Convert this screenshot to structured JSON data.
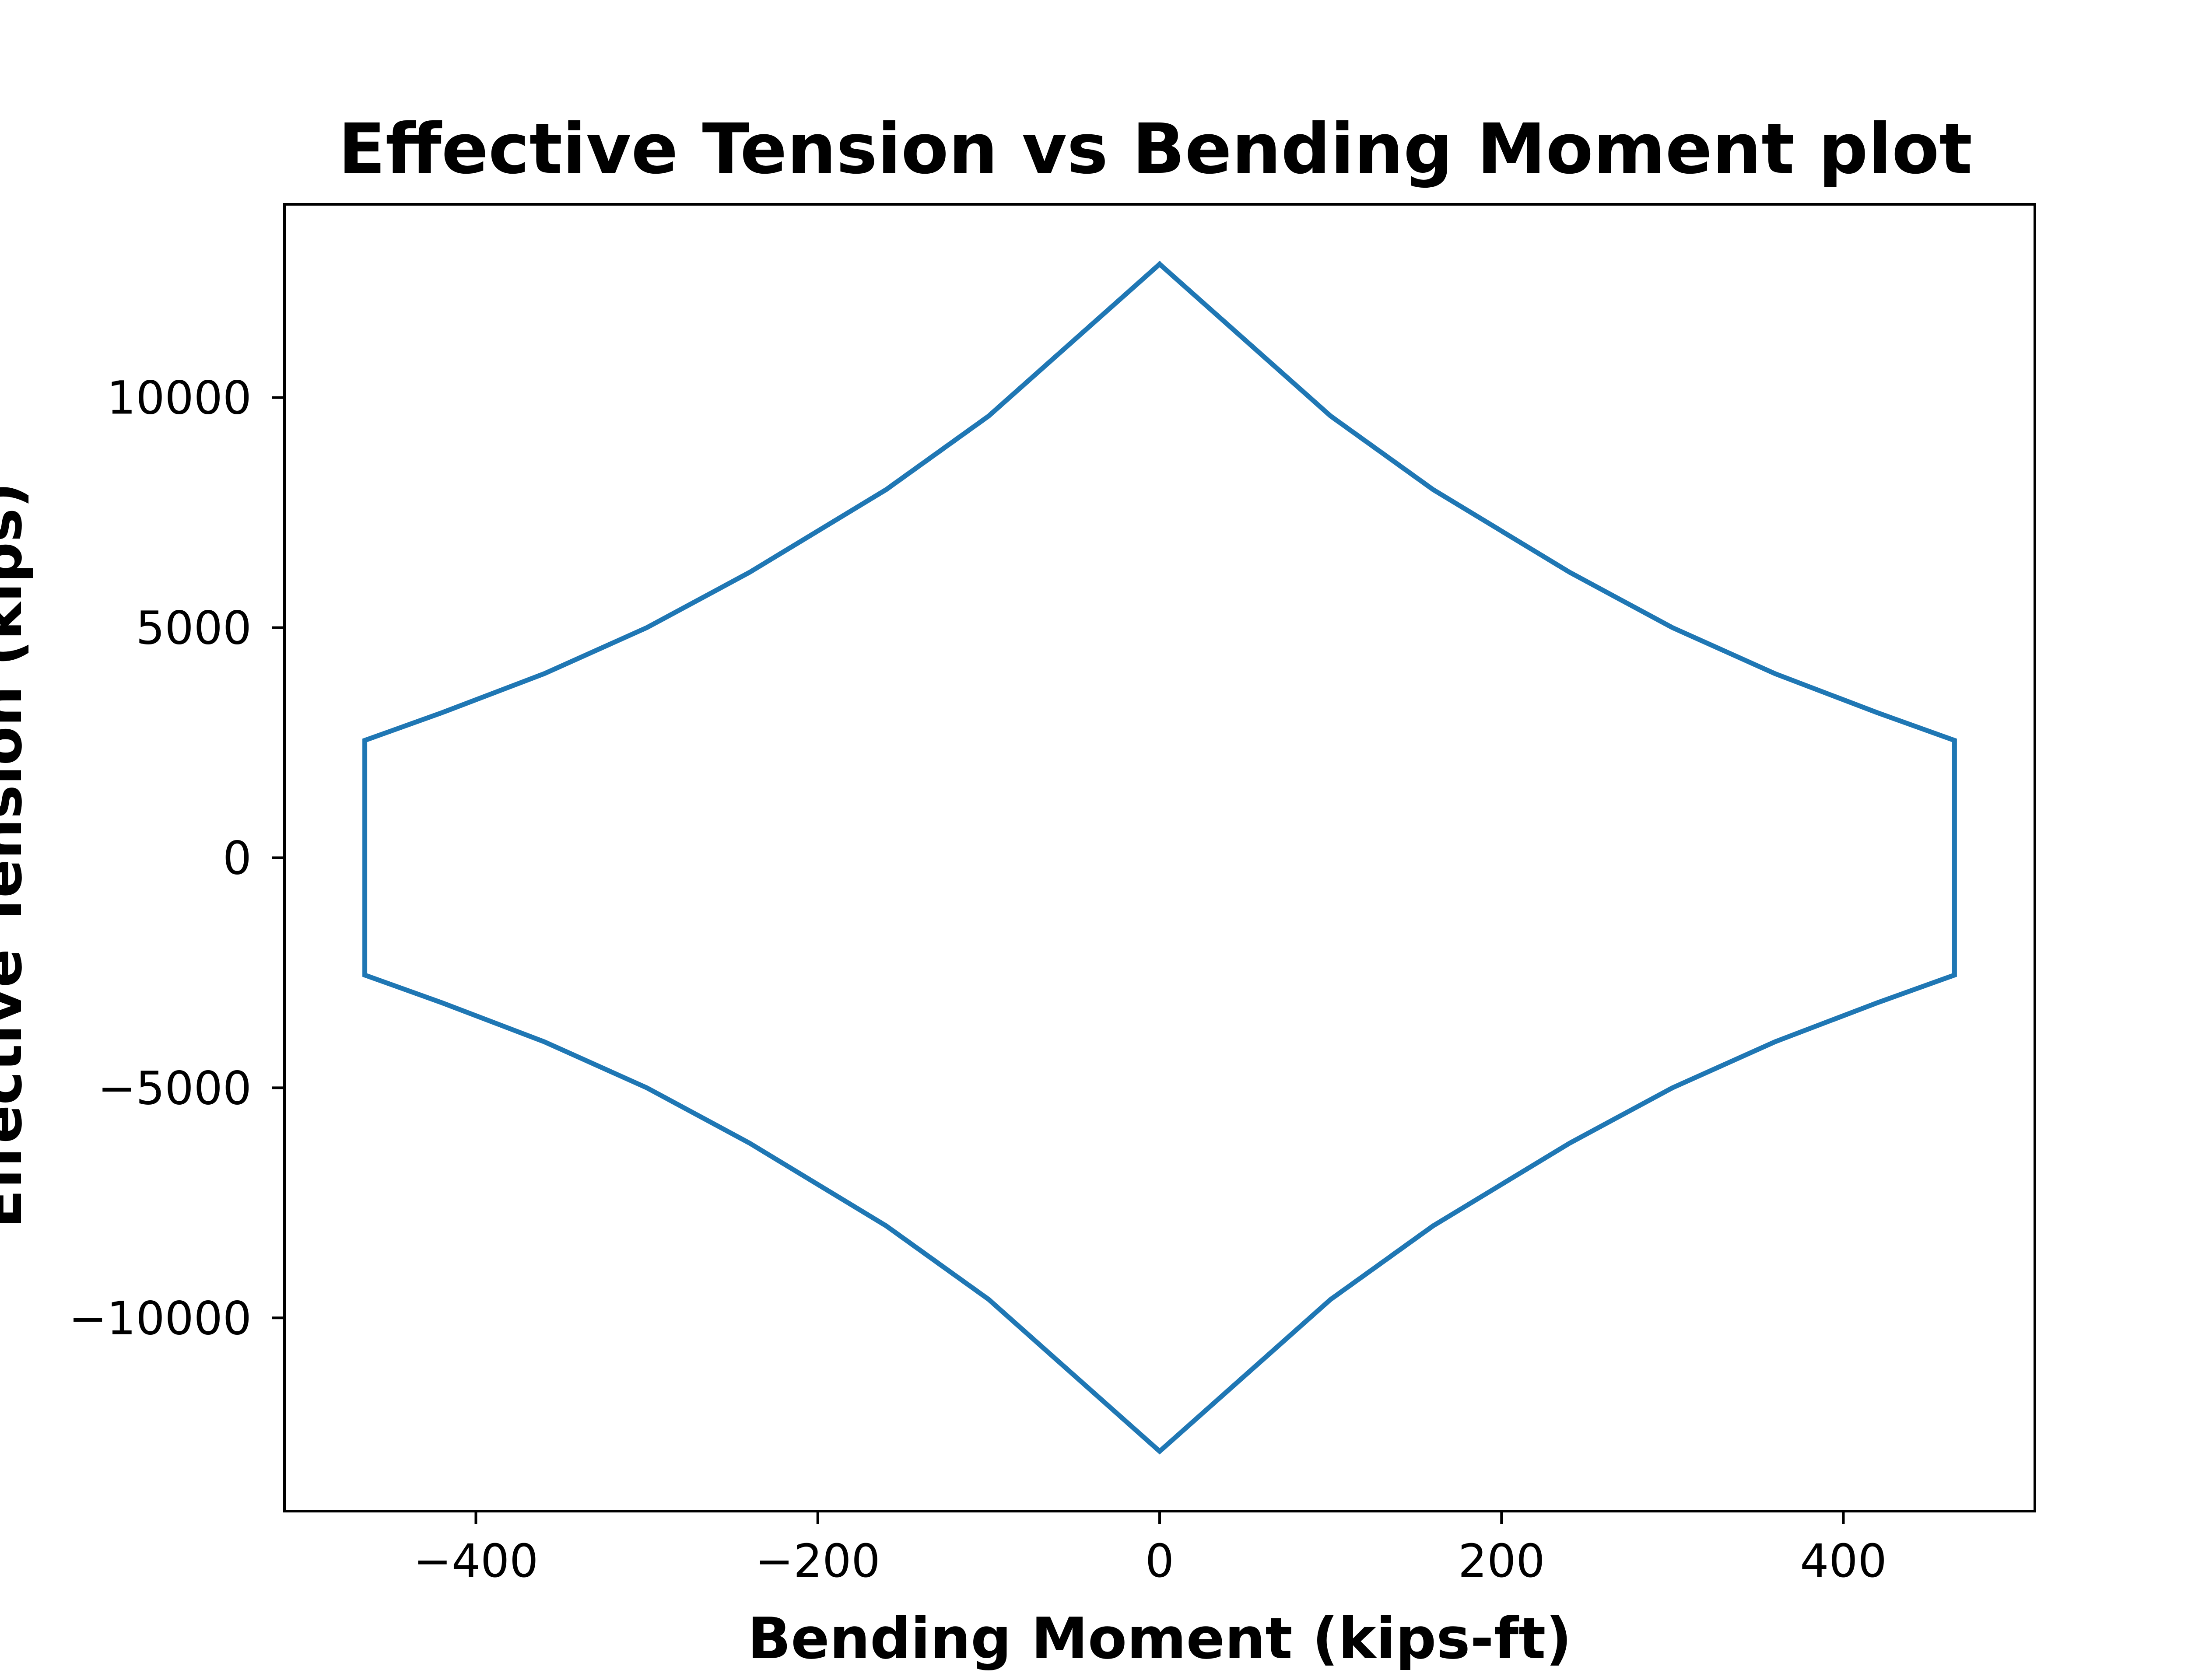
{
  "chart_data": {
    "type": "line",
    "title": "Effective Tension vs Bending Moment plot",
    "xlabel": "Bending Moment (kips-ft)",
    "ylabel": "Effective Tension (kips)",
    "xlim": [
      -512,
      512
    ],
    "ylim": [
      -14200,
      14200
    ],
    "xticks": [
      -400,
      -200,
      0,
      200,
      400
    ],
    "yticks": [
      -10000,
      -5000,
      0,
      5000,
      10000
    ],
    "xtick_labels": [
      "−400",
      "−200",
      "0",
      "200",
      "400"
    ],
    "ytick_labels": [
      "−10000",
      "−5000",
      "0",
      "5000",
      "10000"
    ],
    "grid": false,
    "series": [
      {
        "color": "#1f77b4",
        "x": [
          0,
          100,
          160,
          240,
          300,
          360,
          420,
          465,
          465,
          420,
          360,
          300,
          240,
          160,
          100,
          0,
          -100,
          -160,
          -240,
          -300,
          -360,
          -420,
          -465,
          -465,
          -420,
          -360,
          -300,
          -240,
          -160,
          -100,
          0
        ],
        "y": [
          12900,
          9600,
          8000,
          6200,
          5000,
          4000,
          3150,
          2550,
          -2550,
          -3150,
          -4000,
          -5000,
          -6200,
          -8000,
          -9600,
          -12900,
          -9600,
          -8000,
          -6200,
          -5000,
          -4000,
          -3150,
          -2550,
          2550,
          3150,
          4000,
          5000,
          6200,
          8000,
          9600,
          12900
        ]
      }
    ]
  }
}
